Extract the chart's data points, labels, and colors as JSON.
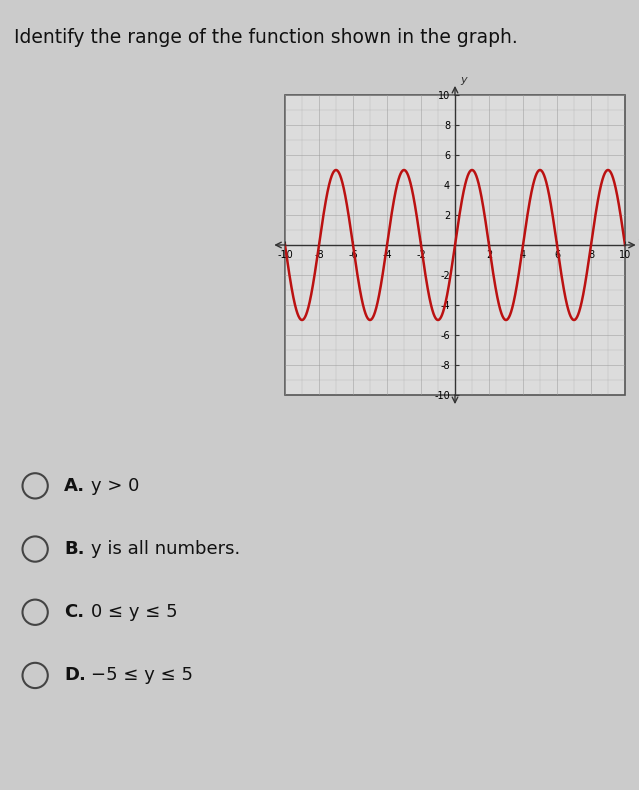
{
  "title": "Identify the range of the function shown in the graph.",
  "title_fontsize": 13.5,
  "graph_xlim": [
    -10,
    10
  ],
  "graph_ylim": [
    -10,
    10
  ],
  "amplitude": 5,
  "period": 4,
  "phase_shift": 0,
  "curve_color": "#bb1111",
  "curve_linewidth": 1.8,
  "background_color": "#cbcbcb",
  "grid_color": "#999999",
  "graph_bg": "#dcdcdc",
  "axis_color": "#333333",
  "tick_color": "#333333",
  "tick_fontsize": 7,
  "choices": [
    "A.  y > 0",
    "B.  y is all numbers.",
    "C.  0 ≤ y ≤ 5",
    "D.  −5 ≤ y ≤ 5"
  ],
  "choice_labels": [
    "A.",
    "B.",
    "C.",
    "D."
  ],
  "choice_texts": [
    "y > 0",
    "y is all numbers.",
    "0 ≤ y ≤ 5",
    "−5 ≤ y ≤ 5"
  ],
  "choice_fontsize": 13
}
